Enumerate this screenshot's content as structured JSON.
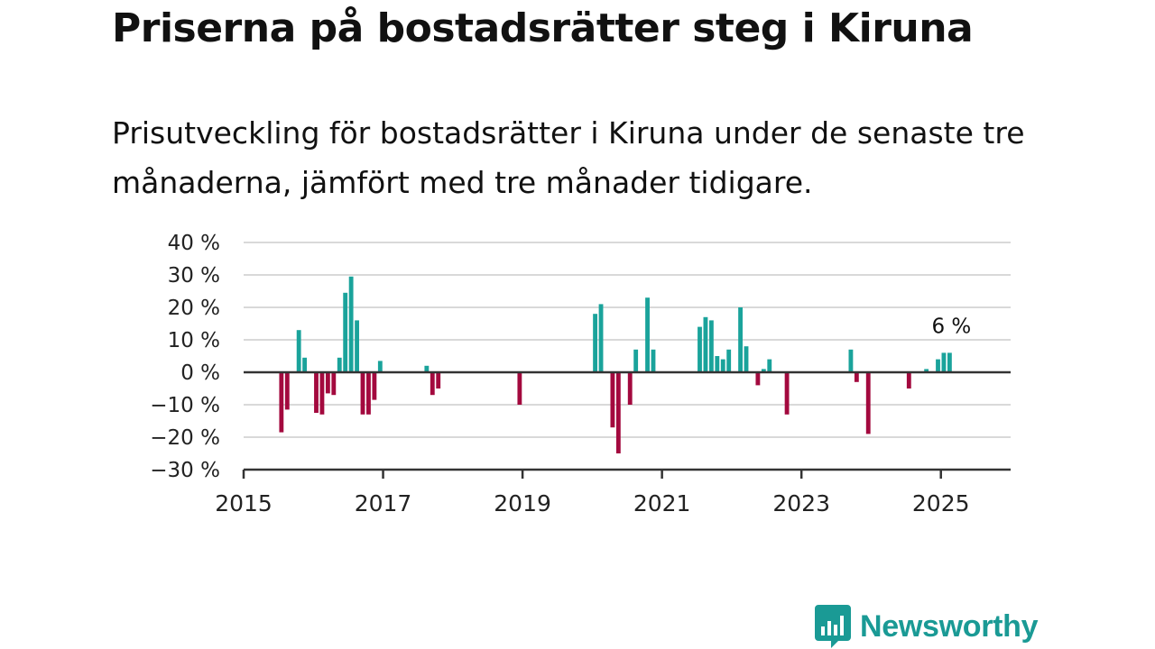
{
  "chart_data": {
    "type": "bar",
    "title": "Priserna på bostadsrätter steg i Kiruna",
    "subtitle": "Prisutveckling för bostadsrätter i Kiruna under de senaste tre månaderna, jämfört med tre månader tidigare.",
    "ylim": [
      -30,
      40
    ],
    "yticks": [
      40,
      30,
      20,
      10,
      0,
      -10,
      -20,
      -30
    ],
    "ytick_labels": [
      "40 %",
      "30 %",
      "20 %",
      "10 %",
      "0 %",
      "−10 %",
      "−20 %",
      "−30 %"
    ],
    "xlim": [
      "2015-01",
      "2025-12"
    ],
    "xticks": [
      "2015-01",
      "2017-01",
      "2019-01",
      "2021-01",
      "2023-01",
      "2025-01"
    ],
    "xtick_labels": [
      "2015",
      "2017",
      "2019",
      "2021",
      "2023",
      "2025"
    ],
    "grid": true,
    "positive_color": "#1aa39b",
    "negative_color": "#a3093e",
    "annotation": {
      "x": "2025-02",
      "label": "6 %"
    },
    "points": [
      {
        "x": "2015-07",
        "y": -18.5
      },
      {
        "x": "2015-08",
        "y": -11.5
      },
      {
        "x": "2015-10",
        "y": 13
      },
      {
        "x": "2015-11",
        "y": 4.5
      },
      {
        "x": "2016-01",
        "y": -12.5
      },
      {
        "x": "2016-02",
        "y": -13
      },
      {
        "x": "2016-03",
        "y": -6.5
      },
      {
        "x": "2016-04",
        "y": -7
      },
      {
        "x": "2016-05",
        "y": 4.5
      },
      {
        "x": "2016-06",
        "y": 24.5
      },
      {
        "x": "2016-07",
        "y": 29.5
      },
      {
        "x": "2016-08",
        "y": 16
      },
      {
        "x": "2016-09",
        "y": -13
      },
      {
        "x": "2016-10",
        "y": -13
      },
      {
        "x": "2016-11",
        "y": -8.5
      },
      {
        "x": "2016-12",
        "y": 3.5
      },
      {
        "x": "2017-08",
        "y": 2
      },
      {
        "x": "2017-09",
        "y": -7
      },
      {
        "x": "2017-10",
        "y": -5
      },
      {
        "x": "2018-12",
        "y": -10
      },
      {
        "x": "2020-01",
        "y": 18
      },
      {
        "x": "2020-02",
        "y": 21
      },
      {
        "x": "2020-04",
        "y": -17
      },
      {
        "x": "2020-05",
        "y": -25
      },
      {
        "x": "2020-07",
        "y": -10
      },
      {
        "x": "2020-08",
        "y": 7
      },
      {
        "x": "2020-10",
        "y": 23
      },
      {
        "x": "2020-11",
        "y": 7
      },
      {
        "x": "2021-07",
        "y": 14
      },
      {
        "x": "2021-08",
        "y": 17
      },
      {
        "x": "2021-09",
        "y": 16
      },
      {
        "x": "2021-10",
        "y": 5
      },
      {
        "x": "2021-11",
        "y": 4
      },
      {
        "x": "2021-12",
        "y": 7
      },
      {
        "x": "2022-02",
        "y": 20
      },
      {
        "x": "2022-03",
        "y": 8
      },
      {
        "x": "2022-05",
        "y": -4
      },
      {
        "x": "2022-06",
        "y": 1
      },
      {
        "x": "2022-07",
        "y": 4
      },
      {
        "x": "2022-10",
        "y": -13
      },
      {
        "x": "2023-09",
        "y": 7
      },
      {
        "x": "2023-10",
        "y": -3
      },
      {
        "x": "2023-12",
        "y": -19
      },
      {
        "x": "2024-07",
        "y": -5
      },
      {
        "x": "2024-10",
        "y": 1
      },
      {
        "x": "2024-12",
        "y": 4
      },
      {
        "x": "2025-01",
        "y": 6
      },
      {
        "x": "2025-02",
        "y": 6
      }
    ]
  },
  "brand": {
    "name": "Newsworthy",
    "logo_icon": "chart-speech-bubble-icon",
    "color": "#1a9a95"
  }
}
